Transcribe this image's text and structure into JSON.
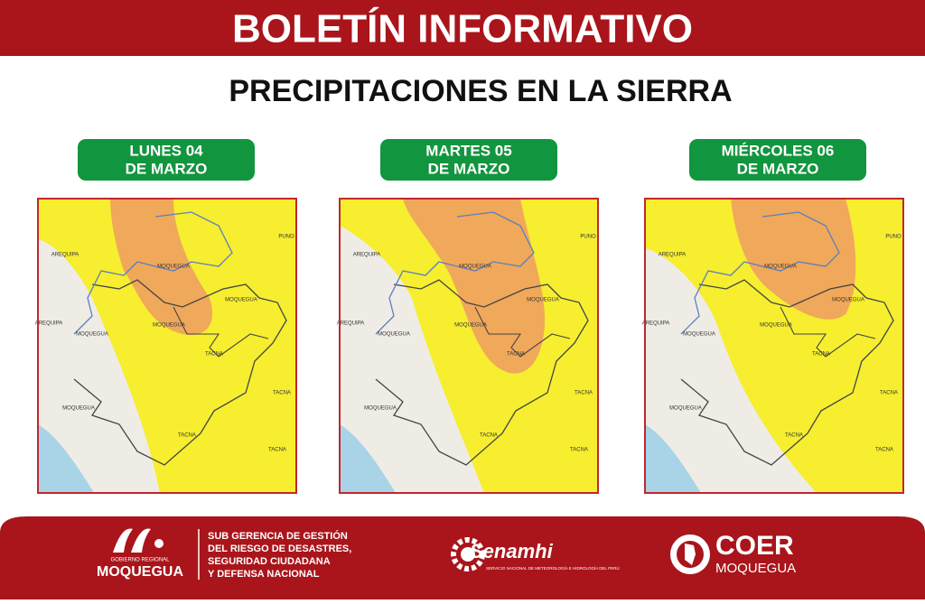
{
  "header": {
    "title": "BOLETÍN INFORMATIVO",
    "subtitle": "PRECIPITACIONES EN LA SIERRA"
  },
  "panels": [
    {
      "date": [
        "LUNES 04",
        "DE MARZO"
      ],
      "map_labels": [
        "AREQUIPA",
        "MOQUEGUA",
        "PUNO",
        "MOQUEGUA",
        "MOQUEGUA",
        "AREQUIPA",
        "MOQUEGUA",
        "TACNA",
        "TACNA",
        "MOQUEGUA",
        "TACNA",
        "TACNA"
      ]
    },
    {
      "date": [
        "MARTES 05",
        "DE MARZO"
      ],
      "map_labels": [
        "AREQUIPA",
        "MOQUEGUA",
        "PUNO",
        "MOQUEGUA",
        "MOQUEGUA",
        "AREQUIPA",
        "MOQUEGUA",
        "TACNA",
        "TACNA",
        "MOQUEGUA",
        "TACNA",
        "TACNA"
      ]
    },
    {
      "date": [
        "MIÉRCOLES 06",
        "DE MARZO"
      ],
      "map_labels": [
        "AREQUIPA",
        "MOQUEGUA",
        "PUNO",
        "MOQUEGUA",
        "MOQUEGUA",
        "AREQUIPA",
        "MOQUEGUA",
        "TACNA",
        "TACNA",
        "MOQUEGUA",
        "TACNA",
        "TACNA"
      ]
    }
  ],
  "footer": {
    "gore": {
      "small": "GOBIERNO REGIONAL",
      "name": "MOQUEGUA"
    },
    "sub": [
      "SUB GERENCIA DE GESTIÓN",
      "DEL RIESGO DE DESASTRES,",
      "SEGURIDAD CIUDADANA",
      "Y DEFENSA NACIONAL"
    ],
    "senamhi": {
      "name": "Senamhi",
      "small": "SERVICIO NACIONAL DE METEOROLOGÍA E HIDROLOGÍA DEL PERÚ"
    },
    "coer": {
      "name": "COER",
      "sub": "MOQUEGUA"
    }
  }
}
